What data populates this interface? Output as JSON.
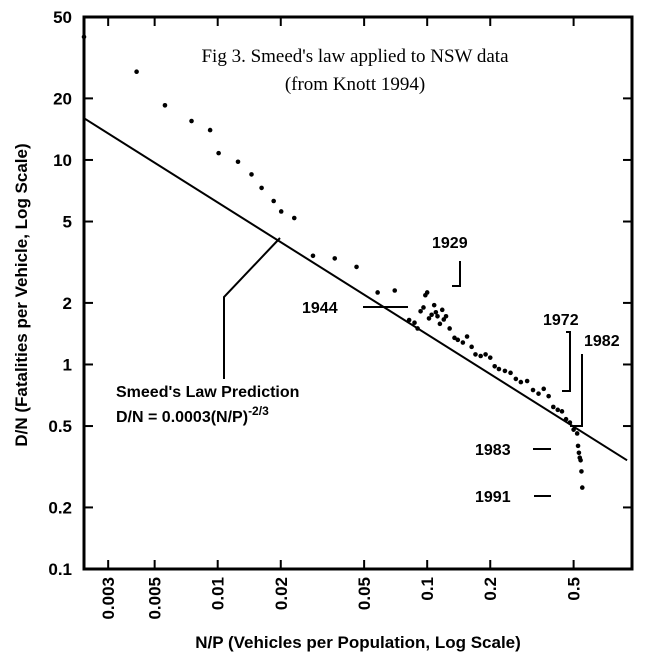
{
  "chart_data": {
    "type": "scatter",
    "title": "Fig 3. Smeed's law applied to NSW data",
    "subtitle": "(from Knott 1994)",
    "xlabel": "N/P (Vehicles per Population, Log Scale)",
    "ylabel": "D/N (Fatalities per Vehicle, Log Scale)",
    "x_scale": "log",
    "y_scale": "log",
    "xlim": [
      0.0023,
      0.95
    ],
    "ylim": [
      0.1,
      50
    ],
    "grid": false,
    "x_ticks": [
      0.003,
      0.005,
      0.01,
      0.02,
      0.05,
      0.1,
      0.2,
      0.5
    ],
    "x_tick_labels": [
      "0.003",
      "0.005",
      "0.01",
      "0.02",
      "0.05",
      "0.1",
      "0.2",
      "0.5"
    ],
    "y_ticks": [
      0.1,
      0.2,
      0.5,
      1,
      2,
      5,
      10,
      20,
      50
    ],
    "y_tick_labels": [
      "0.1",
      "0.2",
      "0.5",
      "1",
      "2",
      "5",
      "10",
      "20",
      "50"
    ],
    "law": {
      "label_line1": "Smeed's Law Prediction",
      "formula_main": "D/N = 0.0003(N/P)",
      "formula_exp": "-2/3",
      "x": [
        0.0023,
        0.9
      ],
      "y": [
        16.0,
        0.34
      ]
    },
    "points": {
      "x": [
        0.0023,
        0.0041,
        0.0056,
        0.0075,
        0.0092,
        0.0101,
        0.0125,
        0.0145,
        0.0162,
        0.0185,
        0.0201,
        0.0232,
        0.0285,
        0.0362,
        0.046,
        0.058,
        0.07,
        0.082,
        0.087,
        0.09,
        0.093,
        0.096,
        0.098,
        0.1,
        0.102,
        0.105,
        0.108,
        0.11,
        0.112,
        0.115,
        0.118,
        0.12,
        0.123,
        0.128,
        0.135,
        0.14,
        0.148,
        0.155,
        0.163,
        0.17,
        0.18,
        0.19,
        0.2,
        0.21,
        0.22,
        0.235,
        0.25,
        0.265,
        0.28,
        0.3,
        0.32,
        0.34,
        0.36,
        0.38,
        0.4,
        0.42,
        0.44,
        0.46,
        0.48,
        0.5,
        0.52,
        0.525,
        0.53,
        0.535,
        0.54,
        0.545,
        0.55
      ],
      "y": [
        40,
        27,
        18.5,
        15.5,
        14,
        10.8,
        9.8,
        8.5,
        7.3,
        6.3,
        5.6,
        5.2,
        3.4,
        3.3,
        3.0,
        2.25,
        2.3,
        1.65,
        1.6,
        1.5,
        1.82,
        1.9,
        2.18,
        2.25,
        1.68,
        1.75,
        1.95,
        1.8,
        1.72,
        1.58,
        1.85,
        1.66,
        1.72,
        1.5,
        1.35,
        1.32,
        1.28,
        1.37,
        1.22,
        1.12,
        1.1,
        1.12,
        1.08,
        0.98,
        0.95,
        0.93,
        0.91,
        0.85,
        0.82,
        0.83,
        0.75,
        0.72,
        0.76,
        0.7,
        0.62,
        0.6,
        0.59,
        0.54,
        0.52,
        0.48,
        0.46,
        0.4,
        0.37,
        0.35,
        0.34,
        0.3,
        0.25
      ]
    },
    "annotations": [
      {
        "text": "1929",
        "x": 0.108,
        "y": 2.15
      },
      {
        "text": "1944",
        "x": 0.088,
        "y": 1.28
      },
      {
        "text": "1972",
        "x": 0.45,
        "y": 0.64
      },
      {
        "text": "1982",
        "x": 0.56,
        "y": 0.44
      },
      {
        "text": "1983",
        "x": 0.54,
        "y": 0.35
      },
      {
        "text": "1991",
        "x": 0.515,
        "y": 0.22
      }
    ]
  }
}
